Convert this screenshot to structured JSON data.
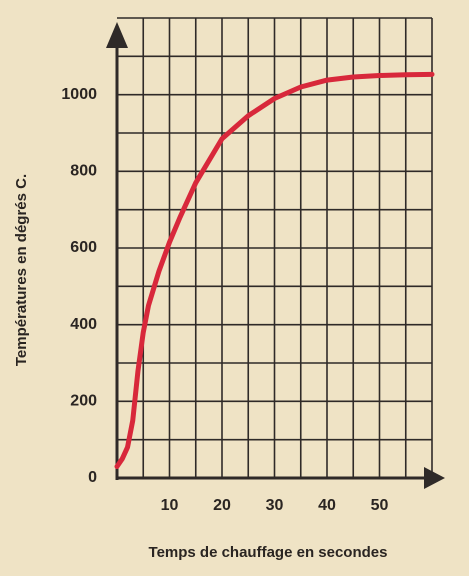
{
  "chart_data": {
    "type": "line",
    "y_label": "Températures en dégrés C.",
    "x_label": "Temps de chauffage  en secondes",
    "x": [
      0,
      1,
      2,
      3,
      4,
      5,
      6,
      8,
      10,
      12,
      15,
      20,
      25,
      30,
      35,
      40,
      45,
      50,
      55,
      60
    ],
    "series": [
      {
        "color": "#d8283b",
        "values": [
          30,
          50,
          80,
          150,
          280,
          380,
          450,
          540,
          615,
          680,
          770,
          885,
          945,
          990,
          1020,
          1038,
          1046,
          1050,
          1052,
          1053
        ]
      }
    ],
    "xlim": [
      0,
      60
    ],
    "ylim": [
      0,
      1200
    ],
    "xticks": [
      10,
      20,
      30,
      40,
      50
    ],
    "yticks": [
      0,
      200,
      400,
      600,
      800,
      1000
    ],
    "xgrid": [
      5,
      10,
      15,
      20,
      25,
      30,
      35,
      40,
      45,
      50,
      55,
      60
    ],
    "ygrid": [
      100,
      200,
      300,
      400,
      500,
      600,
      700,
      800,
      900,
      1000,
      1100,
      1200
    ]
  }
}
